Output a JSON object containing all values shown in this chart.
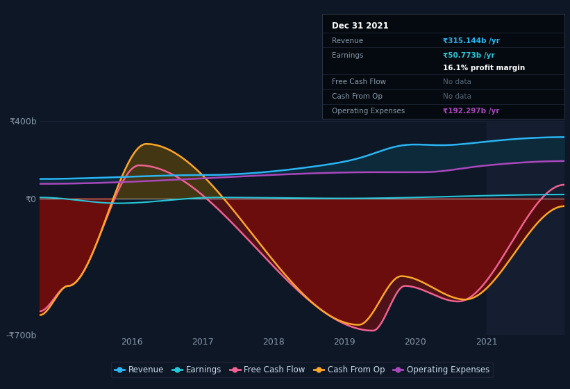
{
  "bg_color": "#0e1726",
  "plot_bg_color": "#0e1726",
  "ylim": [
    -700,
    400
  ],
  "xlim": [
    2014.7,
    2022.1
  ],
  "yticks": [
    -700,
    0,
    400
  ],
  "xticks": [
    2016,
    2017,
    2018,
    2019,
    2020,
    2021
  ],
  "colors": {
    "revenue": "#29b6f6",
    "earnings": "#26c6da",
    "free_cash_flow": "#f06292",
    "cash_from_op": "#ffa726",
    "operating_expenses": "#ab47bc"
  },
  "tooltip": {
    "date": "Dec 31 2021",
    "revenue_label": "Revenue",
    "revenue_value": "₹315.144b /yr",
    "earnings_label": "Earnings",
    "earnings_value": "₹50.773b /yr",
    "profit_margin": "16.1% profit margin",
    "fcf_label": "Free Cash Flow",
    "fcf_value": "No data",
    "cash_label": "Cash From Op",
    "cash_value": "No data",
    "opex_label": "Operating Expenses",
    "opex_value": "₹192.297b /yr"
  },
  "legend": [
    {
      "label": "Revenue",
      "color": "#29b6f6"
    },
    {
      "label": "Earnings",
      "color": "#26c6da"
    },
    {
      "label": "Free Cash Flow",
      "color": "#f06292"
    },
    {
      "label": "Cash From Op",
      "color": "#ffa726"
    },
    {
      "label": "Operating Expenses",
      "color": "#ab47bc"
    }
  ]
}
